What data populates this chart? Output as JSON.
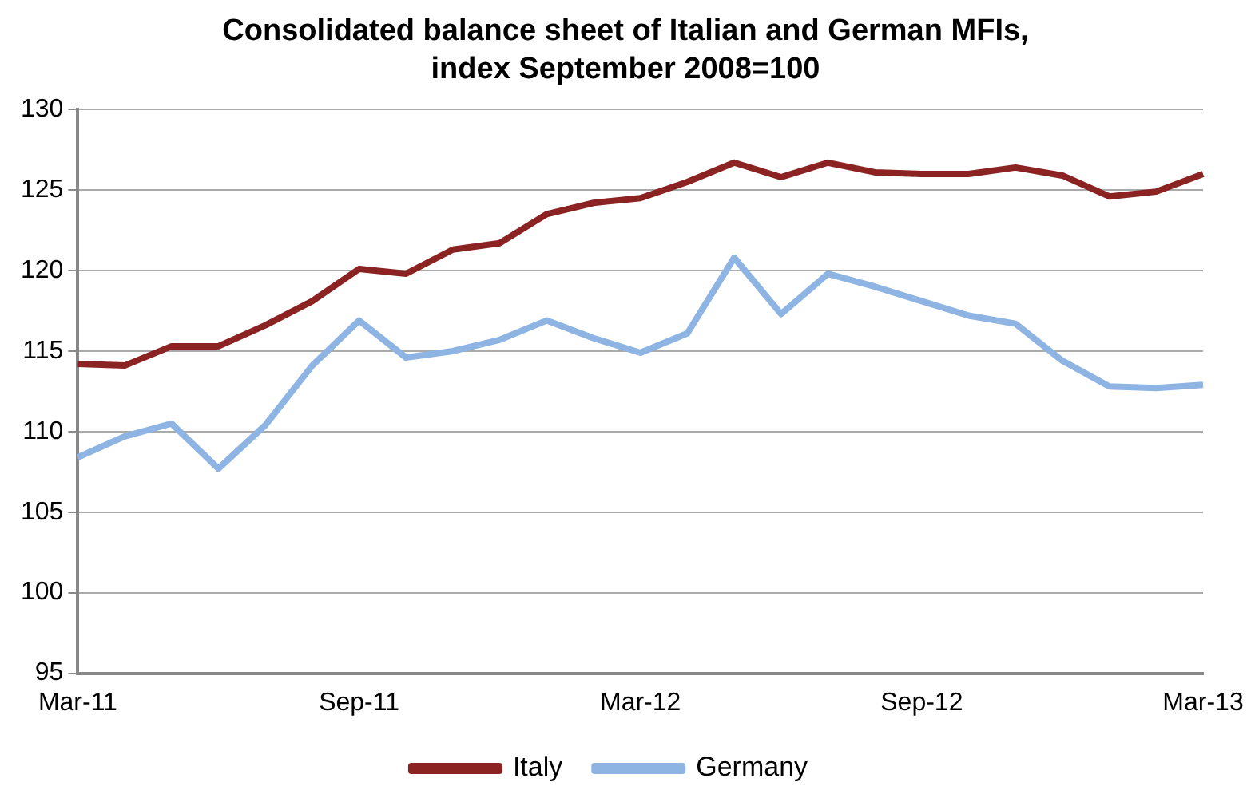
{
  "chart_data": {
    "type": "line",
    "title": "Consolidated balance sheet of Italian and German MFIs, index September 2008=100",
    "categories": [
      "Mar-11",
      null,
      null,
      null,
      null,
      null,
      "Sep-11",
      null,
      null,
      null,
      null,
      null,
      "Mar-12",
      null,
      null,
      null,
      null,
      null,
      "Sep-12",
      null,
      null,
      null,
      null,
      null,
      "Mar-13"
    ],
    "series": [
      {
        "name": "Italy",
        "color": "#8b2323",
        "values": [
          114.2,
          114.1,
          115.3,
          115.3,
          116.6,
          118.1,
          120.1,
          119.8,
          121.3,
          121.7,
          123.5,
          124.2,
          124.5,
          125.5,
          126.7,
          125.8,
          126.7,
          126.1,
          126.0,
          126.0,
          126.4,
          125.9,
          124.6,
          124.9,
          126.0
        ]
      },
      {
        "name": "Germany",
        "color": "#8db4e2",
        "values": [
          108.4,
          109.7,
          110.5,
          107.7,
          110.4,
          114.1,
          116.9,
          114.6,
          115.0,
          115.7,
          116.9,
          115.8,
          114.9,
          116.1,
          120.8,
          117.3,
          119.8,
          119.0,
          118.1,
          117.2,
          116.7,
          114.4,
          112.8,
          112.7,
          112.9
        ]
      }
    ],
    "ylim": [
      95,
      130
    ],
    "yticks": [
      95,
      100,
      105,
      110,
      115,
      120,
      125,
      130
    ],
    "grid": "y",
    "legend": "bottom",
    "marker": "none",
    "line_style": "solid"
  }
}
